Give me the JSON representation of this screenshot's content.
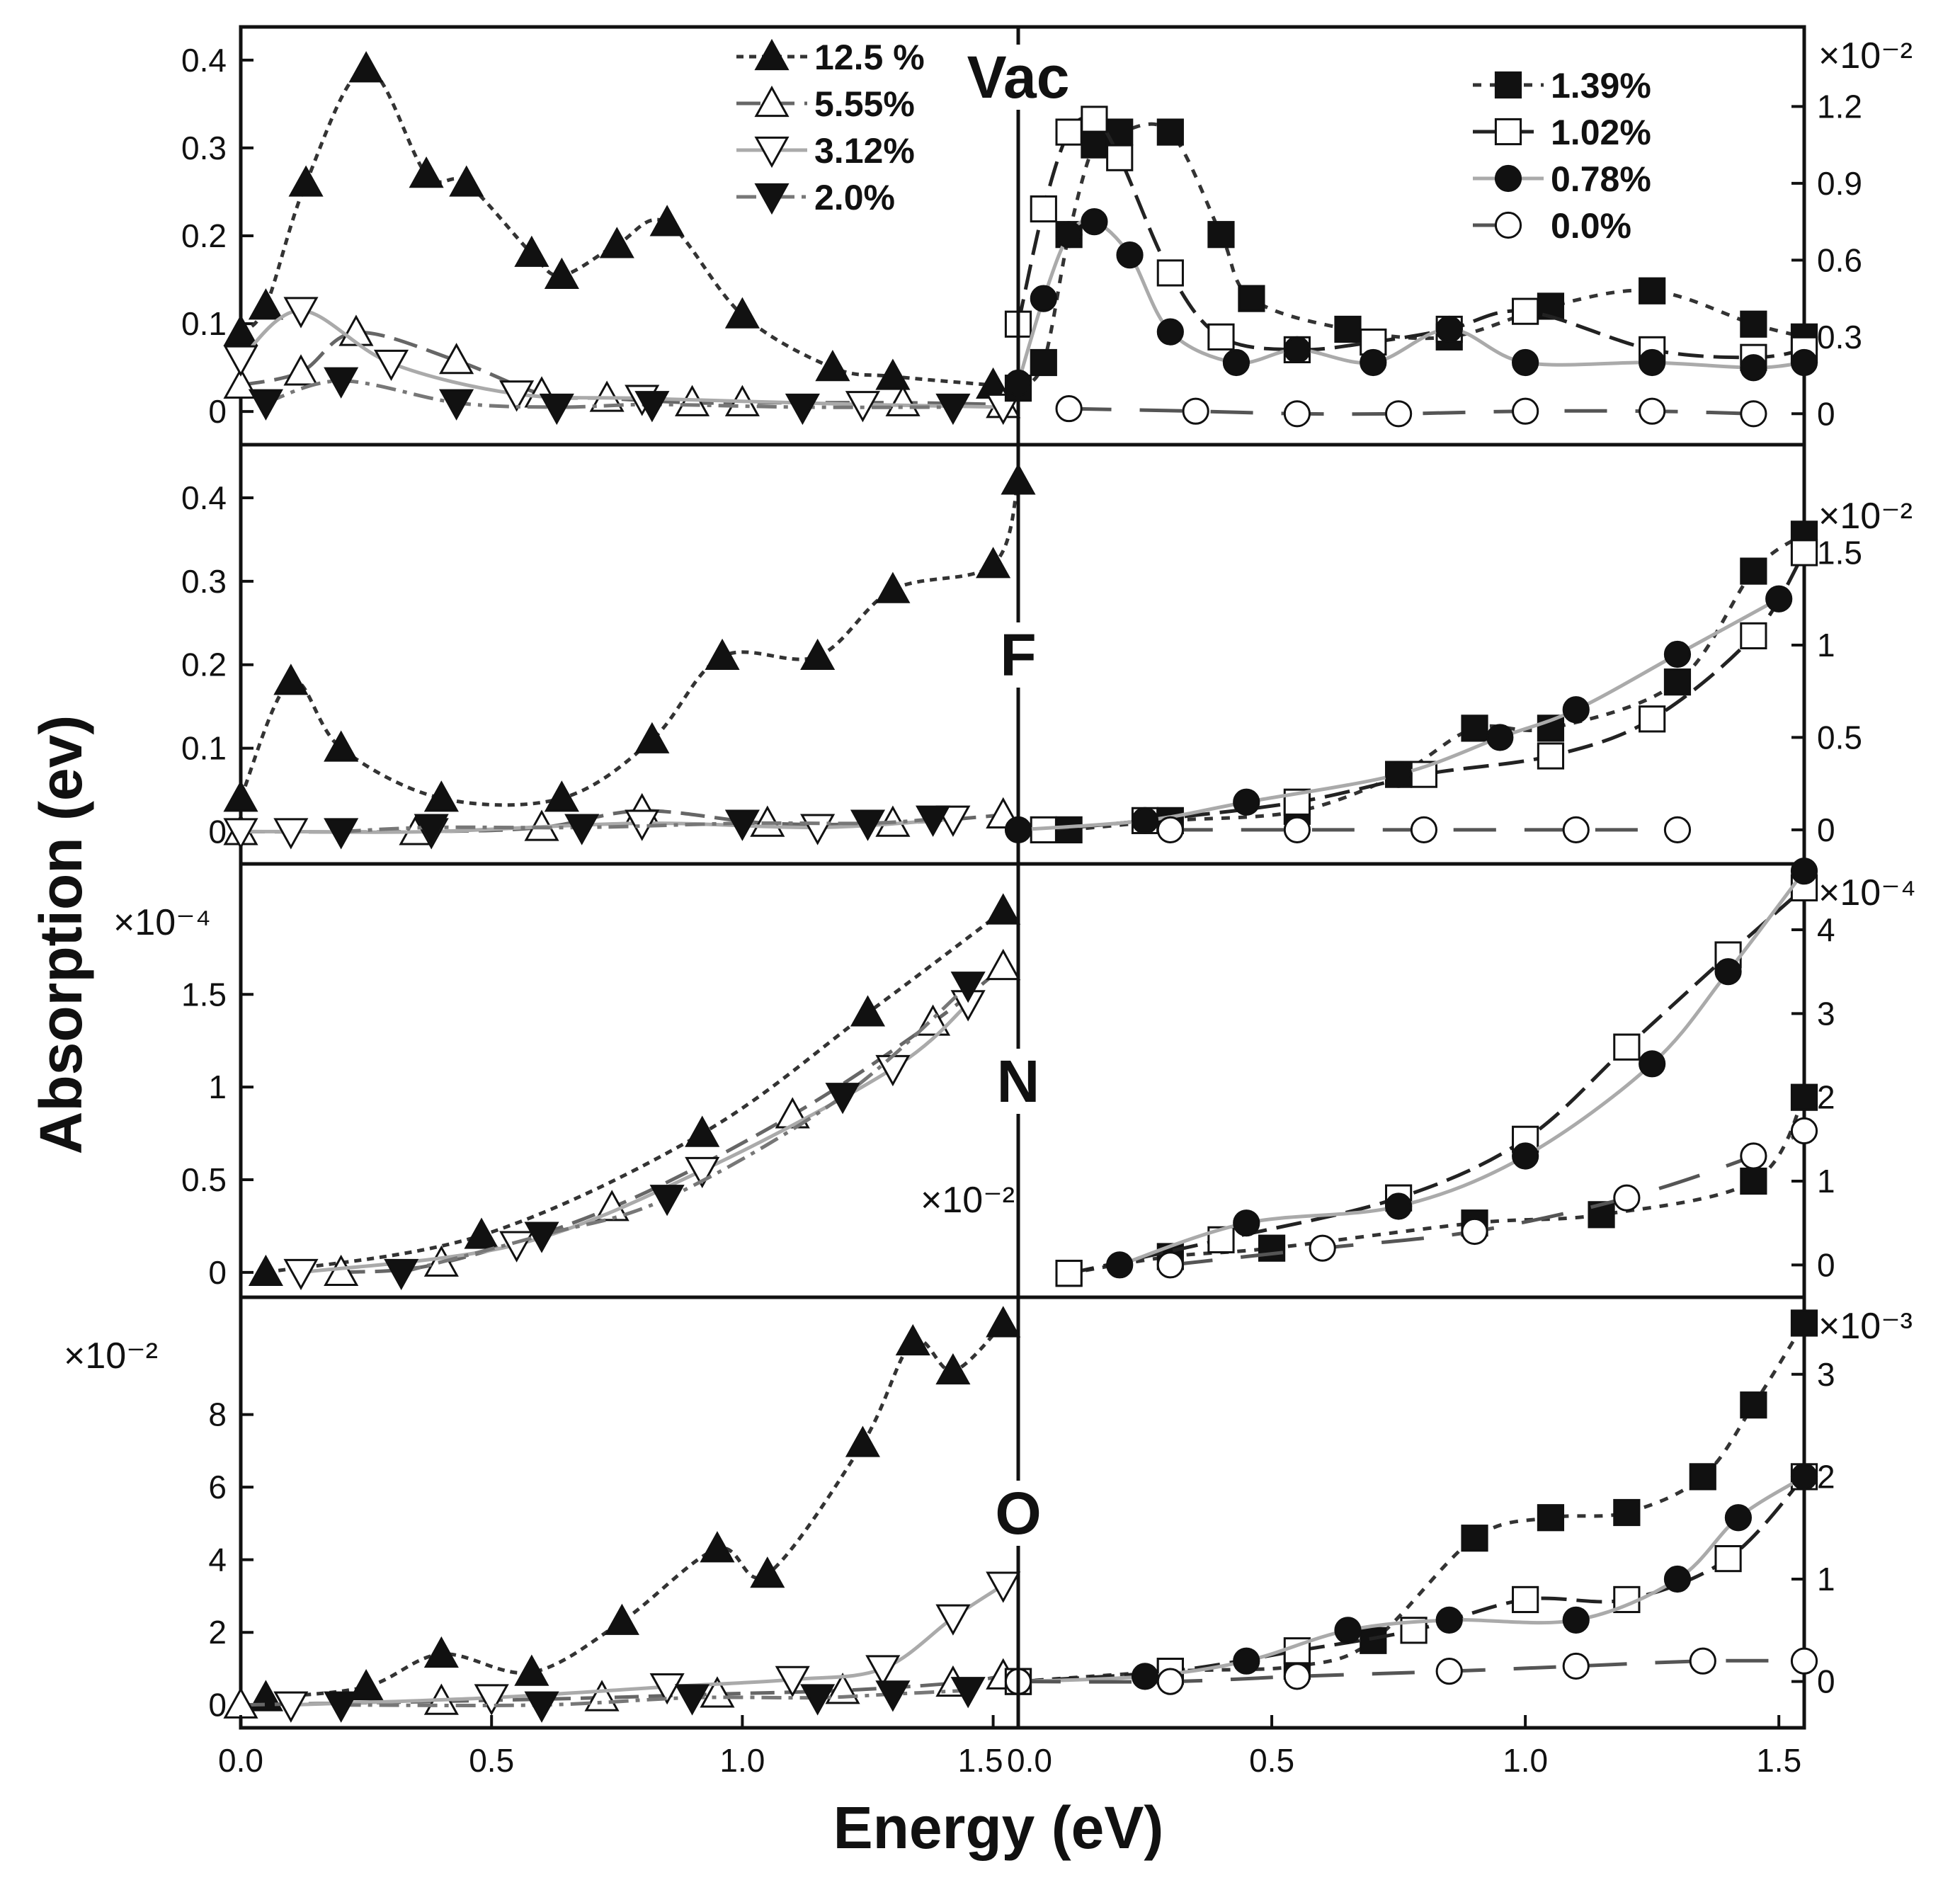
{
  "figure": {
    "ylabel": "Absorption (ev)",
    "xlabel": "Energy (eV)"
  },
  "legend_left": [
    {
      "key": "s125",
      "label": "12.5 %"
    },
    {
      "key": "s555",
      "label": "5.55%"
    },
    {
      "key": "s312",
      "label": "3.12%"
    },
    {
      "key": "s200",
      "label": "2.0%"
    }
  ],
  "legend_right": [
    {
      "key": "s139",
      "label": "1.39%"
    },
    {
      "key": "s102",
      "label": "1.02%"
    },
    {
      "key": "s078",
      "label": "0.78%"
    },
    {
      "key": "s000",
      "label": "0.0%"
    }
  ],
  "styles": {
    "s125": {
      "color": "#333333",
      "dash": "10,8",
      "marker": "tri-up-filled"
    },
    "s555": {
      "color": "#666666",
      "dash": "34,14",
      "marker": "tri-up-open"
    },
    "s312": {
      "color": "#aaaaaa",
      "dash": "",
      "marker": "tri-down-open"
    },
    "s200": {
      "color": "#777777",
      "dash": "28,10,6,10",
      "marker": "tri-down-filled"
    },
    "s139": {
      "color": "#333333",
      "dash": "12,12",
      "marker": "square-filled"
    },
    "s102": {
      "color": "#222222",
      "dash": "36,14",
      "marker": "square-open"
    },
    "s078": {
      "color": "#aaaaaa",
      "dash": "",
      "marker": "circle-filled"
    },
    "s000": {
      "color": "#555555",
      "dash": "60,40",
      "marker": "circle-open"
    }
  },
  "chart_data": [
    {
      "type": "line",
      "panel": "Vac",
      "label": "Vac",
      "xlim_left": [
        0.0,
        1.55
      ],
      "xlim_right": [
        0.0,
        1.55
      ],
      "ylim_left": [
        -0.02,
        0.42
      ],
      "ylim_right": [
        -0.06,
        1.45
      ],
      "yticks_left": [
        "0",
        "0.1",
        "0.2",
        "0.3",
        "0.4"
      ],
      "ytick_values_left": [
        0,
        0.1,
        0.2,
        0.3,
        0.4
      ],
      "yticks_right": [
        "0",
        "0.3",
        "0.6",
        "0.9",
        "1.2"
      ],
      "ytick_values_right": [
        0,
        0.3,
        0.6,
        0.9,
        1.2
      ],
      "scale_left": "",
      "scale_right": "×10⁻²",
      "left_series": [
        {
          "name": "12.5 %",
          "style": "s125",
          "x": [
            0.0,
            0.05,
            0.13,
            0.25,
            0.37,
            0.45,
            0.58,
            0.64,
            0.75,
            0.85,
            1.0,
            1.18,
            1.3,
            1.5
          ],
          "y": [
            0.09,
            0.12,
            0.26,
            0.39,
            0.27,
            0.26,
            0.18,
            0.155,
            0.19,
            0.215,
            0.11,
            0.05,
            0.04,
            0.03
          ]
        },
        {
          "name": "5.55%",
          "style": "s555",
          "x": [
            0.0,
            0.12,
            0.23,
            0.43,
            0.6,
            0.73,
            0.9,
            1.0,
            1.32,
            1.52
          ],
          "y": [
            0.03,
            0.045,
            0.09,
            0.058,
            0.02,
            0.015,
            0.01,
            0.01,
            0.01,
            0.008
          ]
        },
        {
          "name": "3.12%",
          "style": "s312",
          "x": [
            0.0,
            0.12,
            0.3,
            0.55,
            0.8,
            1.24,
            1.52
          ],
          "y": [
            0.06,
            0.115,
            0.055,
            0.02,
            0.015,
            0.008,
            0.005
          ]
        },
        {
          "name": "2.0%",
          "style": "s200",
          "x": [
            0.05,
            0.2,
            0.43,
            0.63,
            0.82,
            1.12,
            1.42
          ],
          "y": [
            0.01,
            0.035,
            0.01,
            0.005,
            0.008,
            0.005,
            0.005
          ]
        }
      ],
      "right_series": [
        {
          "name": "1.39%",
          "style": "s139",
          "x": [
            0.0,
            0.05,
            0.1,
            0.15,
            0.2,
            0.3,
            0.4,
            0.46,
            0.65,
            0.85,
            1.05,
            1.25,
            1.45,
            1.55
          ],
          "y": [
            0.1,
            0.2,
            0.7,
            1.05,
            1.1,
            1.1,
            0.7,
            0.45,
            0.33,
            0.3,
            0.42,
            0.48,
            0.35,
            0.3
          ]
        },
        {
          "name": "1.02%",
          "style": "s102",
          "x": [
            0.0,
            0.05,
            0.1,
            0.15,
            0.2,
            0.3,
            0.4,
            0.55,
            0.7,
            0.85,
            1.0,
            1.25,
            1.45,
            1.55
          ],
          "y": [
            0.35,
            0.8,
            1.1,
            1.15,
            1.0,
            0.55,
            0.3,
            0.25,
            0.28,
            0.33,
            0.4,
            0.25,
            0.22,
            0.25
          ]
        },
        {
          "name": "0.78%",
          "style": "s078",
          "x": [
            0.0,
            0.05,
            0.1,
            0.15,
            0.22,
            0.3,
            0.43,
            0.55,
            0.7,
            0.85,
            1.0,
            1.25,
            1.45,
            1.55
          ],
          "y": [
            0.12,
            0.45,
            0.7,
            0.75,
            0.62,
            0.32,
            0.2,
            0.25,
            0.2,
            0.33,
            0.2,
            0.2,
            0.18,
            0.2
          ]
        },
        {
          "name": "0.0%",
          "style": "s000",
          "x": [
            0.1,
            0.35,
            0.55,
            0.75,
            1.0,
            1.25,
            1.45
          ],
          "y": [
            0.02,
            0.01,
            0.0,
            0.0,
            0.01,
            0.01,
            0.0
          ]
        }
      ]
    },
    {
      "type": "line",
      "panel": "F",
      "label": "F",
      "xlim_left": [
        0.0,
        1.55
      ],
      "xlim_right": [
        0.0,
        1.55
      ],
      "ylim_left": [
        -0.02,
        0.445
      ],
      "ylim_right": [
        -0.1,
        2.0
      ],
      "yticks_left": [
        "0",
        "0.1",
        "0.2",
        "0.3",
        "0.4"
      ],
      "ytick_values_left": [
        0,
        0.1,
        0.2,
        0.3,
        0.4
      ],
      "yticks_right": [
        "0",
        "0.5",
        "1",
        "1.5"
      ],
      "ytick_values_right": [
        0,
        0.5,
        1,
        1.5
      ],
      "scale_left": "",
      "scale_right": "×10⁻²",
      "left_series": [
        {
          "name": "12.5 %",
          "style": "s125",
          "x": [
            0.0,
            0.1,
            0.2,
            0.4,
            0.64,
            0.82,
            0.96,
            1.15,
            1.3,
            1.5,
            1.55
          ],
          "y": [
            0.04,
            0.18,
            0.1,
            0.04,
            0.04,
            0.11,
            0.21,
            0.21,
            0.29,
            0.32,
            0.42
          ]
        },
        {
          "name": "5.55%",
          "style": "s555",
          "x": [
            0.0,
            0.35,
            0.6,
            0.8,
            1.05,
            1.3,
            1.52
          ],
          "y": [
            0.0,
            0.0,
            0.005,
            0.025,
            0.01,
            0.01,
            0.02
          ]
        },
        {
          "name": "3.12%",
          "style": "s312",
          "x": [
            0.0,
            0.1,
            0.38,
            0.8,
            1.15,
            1.42
          ],
          "y": [
            0.0,
            0.0,
            0.0,
            0.01,
            0.005,
            0.015
          ]
        },
        {
          "name": "2.0%",
          "style": "s200",
          "x": [
            0.2,
            0.38,
            0.68,
            1.0,
            1.25,
            1.38
          ],
          "y": [
            0.0,
            0.005,
            0.005,
            0.01,
            0.01,
            0.015
          ]
        }
      ],
      "right_series": [
        {
          "name": "1.39%",
          "style": "s139",
          "x": [
            0.1,
            0.3,
            0.55,
            0.75,
            0.9,
            1.05,
            1.3,
            1.45,
            1.55
          ],
          "y": [
            0.0,
            0.05,
            0.1,
            0.3,
            0.55,
            0.55,
            0.8,
            1.4,
            1.6
          ]
        },
        {
          "name": "1.02%",
          "style": "s102",
          "x": [
            0.05,
            0.25,
            0.55,
            0.8,
            1.05,
            1.25,
            1.45,
            1.55
          ],
          "y": [
            0.0,
            0.05,
            0.15,
            0.3,
            0.4,
            0.6,
            1.05,
            1.5
          ]
        },
        {
          "name": "0.78%",
          "style": "s078",
          "x": [
            0.0,
            0.25,
            0.45,
            0.75,
            0.95,
            1.1,
            1.3,
            1.5
          ],
          "y": [
            0.0,
            0.05,
            0.15,
            0.3,
            0.5,
            0.65,
            0.95,
            1.25
          ]
        },
        {
          "name": "0.0%",
          "style": "s000",
          "x": [
            0.3,
            0.55,
            0.8,
            1.1,
            1.3
          ],
          "y": [
            0.0,
            0.0,
            0.0,
            0.0,
            0.0
          ]
        }
      ]
    },
    {
      "type": "line",
      "panel": "N",
      "label": "N",
      "xlim_left": [
        0.0,
        1.55
      ],
      "xlim_right": [
        0.0,
        1.55
      ],
      "ylim_left": [
        -0.05,
        2.12
      ],
      "ylim_right": [
        -0.2,
        4.6
      ],
      "yticks_left": [
        "0",
        "0.5",
        "1",
        "1.5"
      ],
      "ytick_values_left": [
        0,
        0.5,
        1,
        1.5
      ],
      "yticks_right": [
        "0",
        "1",
        "2",
        "3",
        "4"
      ],
      "ytick_values_right": [
        0,
        1,
        2,
        3,
        4
      ],
      "scale_left": "×10⁻⁴",
      "scale_right": "×10⁻⁴",
      "scale_mid": "×10⁻²",
      "left_series": [
        {
          "name": "12.5 %",
          "style": "s125",
          "x": [
            0.05,
            0.48,
            0.92,
            1.25,
            1.52
          ],
          "y": [
            0.0,
            0.2,
            0.75,
            1.4,
            1.95
          ]
        },
        {
          "name": "5.55%",
          "style": "s555",
          "x": [
            0.2,
            0.4,
            0.74,
            1.1,
            1.38,
            1.52
          ],
          "y": [
            0.0,
            0.05,
            0.35,
            0.85,
            1.35,
            1.65
          ]
        },
        {
          "name": "3.12%",
          "style": "s312",
          "x": [
            0.12,
            0.55,
            0.92,
            1.3,
            1.45
          ],
          "y": [
            0.0,
            0.15,
            0.55,
            1.1,
            1.45
          ]
        },
        {
          "name": "2.0%",
          "style": "s200",
          "x": [
            0.32,
            0.6,
            0.85,
            1.2,
            1.45
          ],
          "y": [
            0.0,
            0.2,
            0.4,
            0.95,
            1.55
          ]
        }
      ],
      "right_series": [
        {
          "name": "1.39%",
          "style": "s139",
          "x": [
            0.1,
            0.3,
            0.5,
            0.9,
            1.15,
            1.45,
            1.55
          ],
          "y": [
            -0.1,
            0.1,
            0.2,
            0.5,
            0.6,
            1.0,
            2.0
          ]
        },
        {
          "name": "1.02%",
          "style": "s102",
          "x": [
            0.1,
            0.4,
            0.75,
            1.0,
            1.2,
            1.4,
            1.55
          ],
          "y": [
            -0.1,
            0.3,
            0.8,
            1.5,
            2.6,
            3.7,
            4.5
          ]
        },
        {
          "name": "0.78%",
          "style": "s078",
          "x": [
            0.2,
            0.45,
            0.75,
            1.0,
            1.25,
            1.4,
            1.55
          ],
          "y": [
            0.0,
            0.5,
            0.7,
            1.3,
            2.4,
            3.5,
            4.7
          ]
        },
        {
          "name": "0.0%",
          "style": "s000",
          "x": [
            0.3,
            0.6,
            0.9,
            1.2,
            1.45,
            1.55
          ],
          "y": [
            0.0,
            0.2,
            0.4,
            0.8,
            1.3,
            1.6
          ]
        }
      ]
    },
    {
      "type": "line",
      "panel": "O",
      "label": "O",
      "xlim_left": [
        0.0,
        1.55
      ],
      "xlim_right": [
        0.0,
        1.55
      ],
      "ylim_left": [
        -0.2,
        10.8
      ],
      "ylim_right": [
        -0.3,
        3.6
      ],
      "yticks_left": [
        "0",
        "2",
        "4",
        "6",
        "8"
      ],
      "ytick_values_left": [
        0,
        2,
        4,
        6,
        8
      ],
      "yticks_right": [
        "0",
        "1",
        "2",
        "3"
      ],
      "ytick_values_right": [
        0,
        1,
        2,
        3
      ],
      "scale_left": "×10⁻²",
      "scale_right": "×10⁻³",
      "xticks": [
        "0.0",
        "0.5",
        "1.0",
        "1.5"
      ],
      "xtick_values": [
        0.0,
        0.5,
        1.0,
        1.5
      ],
      "xticks_right_start": "0.0",
      "left_series": [
        {
          "name": "12.5 %",
          "style": "s125",
          "x": [
            0.05,
            0.25,
            0.4,
            0.58,
            0.76,
            0.95,
            1.05,
            1.24,
            1.34,
            1.42,
            1.52
          ],
          "y": [
            0.2,
            0.5,
            1.4,
            0.9,
            2.3,
            4.3,
            3.6,
            7.2,
            10.0,
            9.2,
            10.5
          ]
        },
        {
          "name": "5.55%",
          "style": "s555",
          "x": [
            0.0,
            0.4,
            0.72,
            0.95,
            1.2,
            1.42,
            1.52
          ],
          "y": [
            0.0,
            0.1,
            0.2,
            0.3,
            0.4,
            0.6,
            0.8
          ]
        },
        {
          "name": "3.12%",
          "style": "s312",
          "x": [
            0.1,
            0.5,
            0.85,
            1.1,
            1.28,
            1.42,
            1.52
          ],
          "y": [
            0.0,
            0.2,
            0.5,
            0.7,
            1.0,
            2.4,
            3.3
          ]
        },
        {
          "name": "2.0%",
          "style": "s200",
          "x": [
            0.2,
            0.6,
            0.9,
            1.15,
            1.3,
            1.45
          ],
          "y": [
            0.0,
            0.0,
            0.2,
            0.2,
            0.3,
            0.4
          ]
        }
      ],
      "right_series": [
        {
          "name": "1.39%",
          "style": "s139",
          "x": [
            0.0,
            0.3,
            0.55,
            0.7,
            0.9,
            1.05,
            1.2,
            1.35,
            1.45,
            1.55
          ],
          "y": [
            0.0,
            0.1,
            0.15,
            0.4,
            1.4,
            1.6,
            1.65,
            2.0,
            2.7,
            3.5
          ]
        },
        {
          "name": "1.02%",
          "style": "s102",
          "x": [
            0.0,
            0.3,
            0.55,
            0.78,
            1.0,
            1.2,
            1.4,
            1.55
          ],
          "y": [
            0.0,
            0.1,
            0.3,
            0.5,
            0.8,
            0.8,
            1.2,
            2.0
          ]
        },
        {
          "name": "0.78%",
          "style": "s078",
          "x": [
            0.0,
            0.25,
            0.45,
            0.65,
            0.85,
            1.1,
            1.3,
            1.42,
            1.55
          ],
          "y": [
            0.0,
            0.05,
            0.2,
            0.5,
            0.6,
            0.6,
            1.0,
            1.6,
            2.0
          ]
        },
        {
          "name": "0.0%",
          "style": "s000",
          "x": [
            0.0,
            0.3,
            0.55,
            0.85,
            1.1,
            1.35,
            1.55
          ],
          "y": [
            0.0,
            0.0,
            0.05,
            0.1,
            0.15,
            0.2,
            0.2
          ]
        }
      ]
    }
  ]
}
